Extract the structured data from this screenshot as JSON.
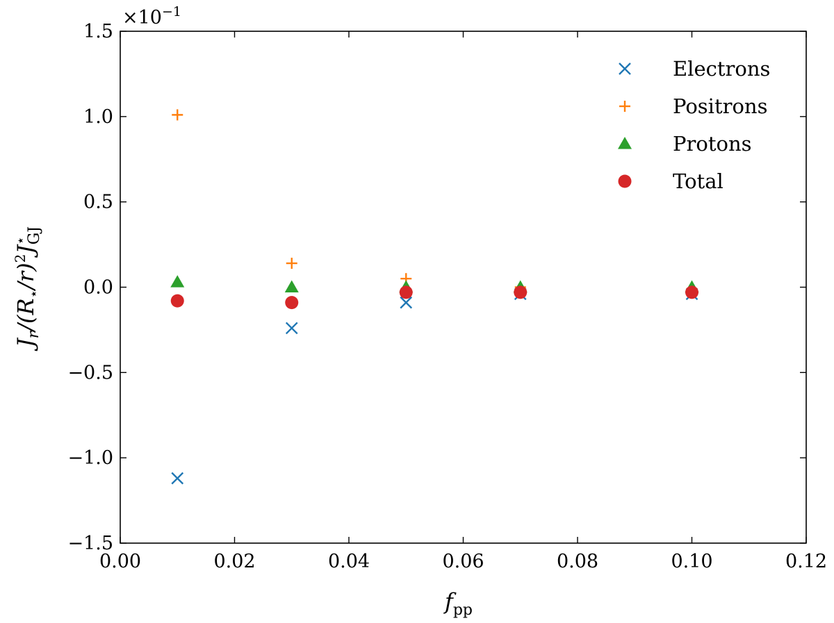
{
  "chart_data": {
    "type": "scatter",
    "title": "",
    "xlabel_base": "f",
    "xlabel_sub": "pp",
    "ylabel": "J_r/(R_⋆/r)^2 J_GJ^⋆",
    "ylabel_parts": {
      "J": "J",
      "r_sub": "r",
      "mid": "/(R",
      "star": "⋆",
      "slash_r": "/r)",
      "sq": "2",
      "J2": "J",
      "gj": "GJ"
    },
    "offset_text": {
      "base": "×10",
      "exp": "−1"
    },
    "xlim": [
      0.0,
      0.12
    ],
    "ylim": [
      -1.5,
      1.5
    ],
    "x_ticks": [
      0.0,
      0.02,
      0.04,
      0.06,
      0.08,
      0.1,
      0.12
    ],
    "x_tick_labels": [
      "0.00",
      "0.02",
      "0.04",
      "0.06",
      "0.08",
      "0.10",
      "0.12"
    ],
    "y_ticks": [
      -1.5,
      -1.0,
      -0.5,
      0.0,
      0.5,
      1.0,
      1.5
    ],
    "y_tick_labels": [
      "−1.5",
      "−1.0",
      "−0.5",
      "0.0",
      "0.5",
      "1.0",
      "1.5"
    ],
    "grid": false,
    "legend_position": "top-right",
    "series": [
      {
        "name": "Electrons",
        "marker": "x",
        "color": "#1f77b4",
        "x": [
          0.01,
          0.03,
          0.05,
          0.07,
          0.1
        ],
        "y": [
          -1.12,
          -0.24,
          -0.09,
          -0.04,
          -0.04
        ]
      },
      {
        "name": "Positrons",
        "marker": "plus",
        "color": "#ff7f0e",
        "x": [
          0.01,
          0.03,
          0.05,
          0.07,
          0.1
        ],
        "y": [
          1.01,
          0.14,
          0.05,
          0.0,
          -0.01
        ]
      },
      {
        "name": "Protons",
        "marker": "triangle",
        "color": "#2ca02c",
        "x": [
          0.01,
          0.03,
          0.05,
          0.07,
          0.1
        ],
        "y": [
          0.03,
          0.0,
          0.0,
          0.0,
          0.0
        ]
      },
      {
        "name": "Total",
        "marker": "circle",
        "color": "#d62728",
        "x": [
          0.01,
          0.03,
          0.05,
          0.07,
          0.1
        ],
        "y": [
          -0.08,
          -0.09,
          -0.03,
          -0.03,
          -0.03
        ]
      }
    ]
  }
}
